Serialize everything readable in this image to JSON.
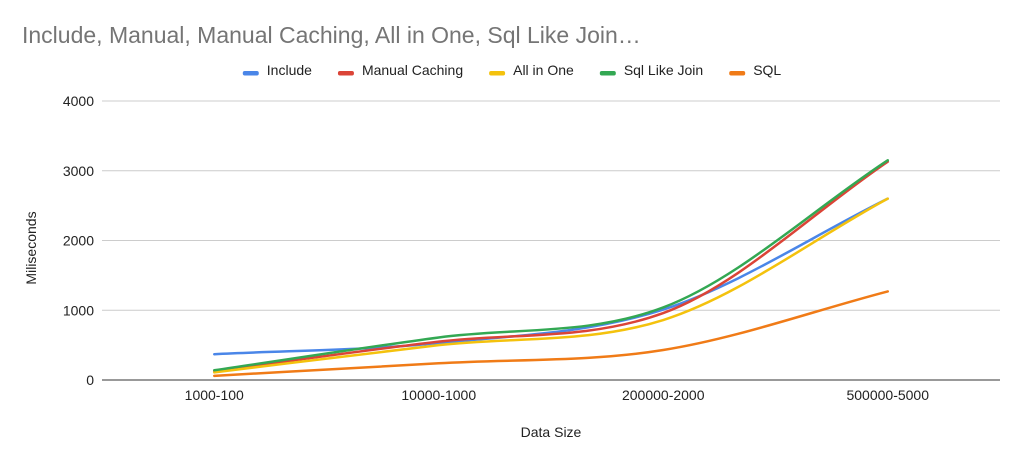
{
  "chart_data": {
    "type": "line",
    "title": "Include, Manual, Manual Caching, All in One, Sql Like Join…",
    "xlabel": "Data Size",
    "ylabel": "Miliseconds",
    "categories": [
      "1000-100",
      "10000-1000",
      "200000-2000",
      "500000-5000"
    ],
    "ylim": [
      0,
      4000
    ],
    "yticks": [
      0,
      1000,
      2000,
      3000,
      4000
    ],
    "grid": true,
    "legend_position": "top",
    "smooth": true,
    "series": [
      {
        "name": "Include",
        "color": "#4a86e8",
        "values": [
          370,
          530,
          1010,
          2600
        ]
      },
      {
        "name": "Manual Caching",
        "color": "#db4437",
        "values": [
          130,
          550,
          960,
          3130
        ]
      },
      {
        "name": "All in One",
        "color": "#f4c20d",
        "values": [
          110,
          500,
          860,
          2600
        ]
      },
      {
        "name": "Sql Like Join",
        "color": "#33a853",
        "values": [
          140,
          610,
          1040,
          3150
        ]
      },
      {
        "name": "SQL",
        "color": "#f07b17",
        "values": [
          60,
          240,
          430,
          1270
        ]
      }
    ]
  }
}
